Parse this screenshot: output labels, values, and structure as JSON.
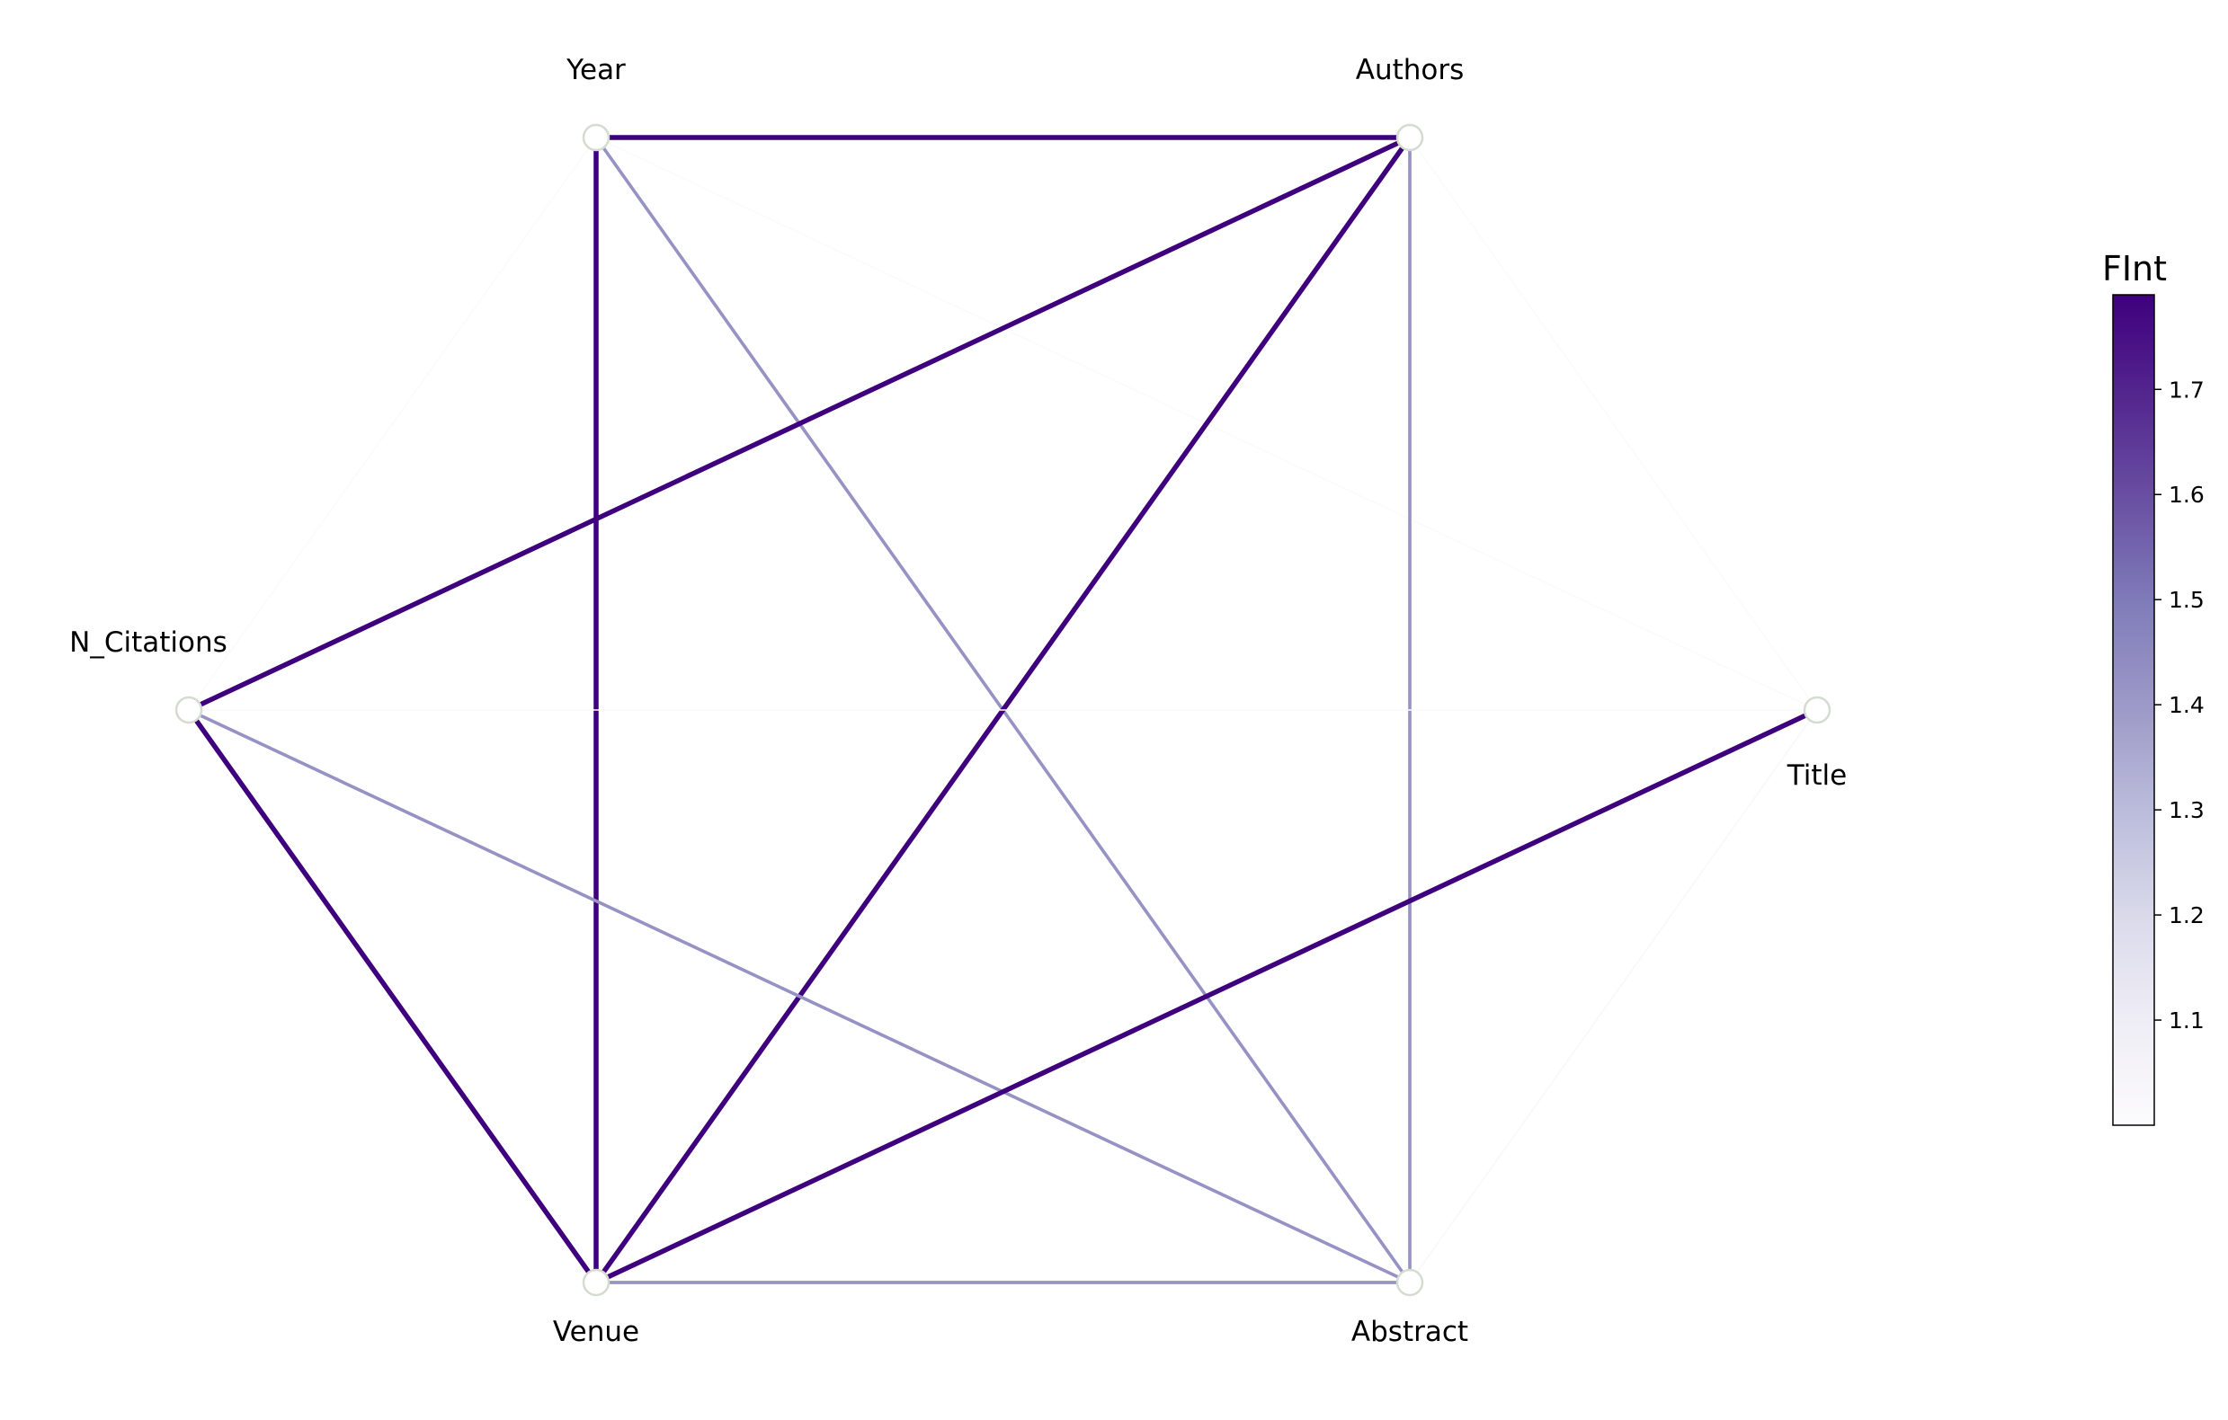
{
  "chart_data": {
    "type": "network",
    "nodes": [
      {
        "id": "year",
        "label": "Year"
      },
      {
        "id": "authors",
        "label": "Authors"
      },
      {
        "id": "n_citations",
        "label": "N_Citations"
      },
      {
        "id": "title",
        "label": "Title"
      },
      {
        "id": "venue",
        "label": "Venue"
      },
      {
        "id": "abstract",
        "label": "Abstract"
      }
    ],
    "edges": [
      {
        "source": "year",
        "target": "authors",
        "value": 1.79
      },
      {
        "source": "year",
        "target": "venue",
        "value": 1.79
      },
      {
        "source": "year",
        "target": "abstract",
        "value": 1.42
      },
      {
        "source": "year",
        "target": "title",
        "value": 1.01
      },
      {
        "source": "year",
        "target": "n_citations",
        "value": 1.01
      },
      {
        "source": "authors",
        "target": "n_citations",
        "value": 1.79
      },
      {
        "source": "authors",
        "target": "venue",
        "value": 1.79
      },
      {
        "source": "authors",
        "target": "abstract",
        "value": 1.42
      },
      {
        "source": "authors",
        "target": "title",
        "value": 1.01
      },
      {
        "source": "n_citations",
        "target": "venue",
        "value": 1.79
      },
      {
        "source": "n_citations",
        "target": "abstract",
        "value": 1.42
      },
      {
        "source": "n_citations",
        "target": "title",
        "value": 1.01
      },
      {
        "source": "venue",
        "target": "title",
        "value": 1.79
      },
      {
        "source": "venue",
        "target": "abstract",
        "value": 1.42
      },
      {
        "source": "abstract",
        "target": "title",
        "value": 1.03
      }
    ],
    "colorbar": {
      "title": "FInt",
      "min": 1.0,
      "max": 1.79,
      "ticks": [
        1.1,
        1.2,
        1.3,
        1.4,
        1.5,
        1.6,
        1.7
      ],
      "tick_labels": [
        "1.1",
        "1.2",
        "1.3",
        "1.4",
        "1.5",
        "1.6",
        "1.7"
      ],
      "colormap": "Purples",
      "color_low": "#fcfbfd",
      "color_high": "#3f007d"
    }
  }
}
